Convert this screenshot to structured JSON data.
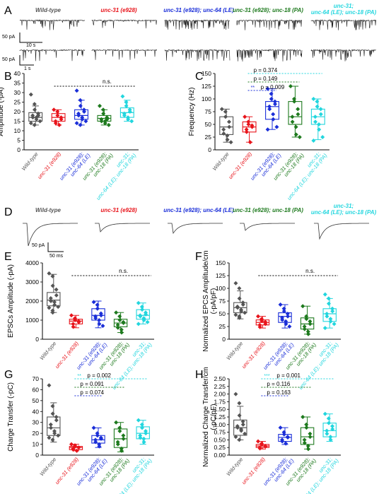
{
  "colors": {
    "wild_type": "#555555",
    "unc31": "#e8141b",
    "unc31_unc64": "#1a2ed8",
    "unc31_unc18": "#1e7a1e",
    "triple": "#22d6de"
  },
  "groups": [
    {
      "key": "wild_type",
      "label_lines": [
        "Wild-type"
      ]
    },
    {
      "key": "unc31",
      "label_lines": [
        "unc-31 (e928)"
      ]
    },
    {
      "key": "unc31_unc64",
      "label_lines": [
        "unc-31 (e928);",
        "unc-64 (LE)"
      ]
    },
    {
      "key": "unc31_unc18",
      "label_lines": [
        "unc-31 (e928);",
        "unc-18 (PA)"
      ]
    },
    {
      "key": "triple",
      "label_lines": [
        "unc-31;",
        "unc-64 (LE); unc-18 (PA)"
      ]
    }
  ],
  "trace_titles_A": [
    "Wild-type",
    "unc-31 (e928)",
    "unc-31 (e928); unc-64 (LE)",
    "unc-31 (e928); unc-18 (PA)",
    "unc-31;"
  ],
  "trace_titles_A_line2": "unc-64 (LE); unc-18 (PA)",
  "trace_titles_D": [
    "Wild-type",
    "unc-31 (e928)",
    "unc-31 (e928); unc-64 (LE)",
    "unc-31 (e928); unc-18 (PA)",
    "unc-31;"
  ],
  "trace_titles_D_line2": "unc-64 (LE); unc-18 (PA)",
  "scale_A1": {
    "y": "50 pA",
    "x": "10 s"
  },
  "scale_A2": {
    "y": "50 pA",
    "x": "1 s"
  },
  "scale_D": {
    "y": "50 pA",
    "x": "50 ms"
  },
  "panel_letters": [
    "A",
    "B",
    "C",
    "D",
    "E",
    "F",
    "G",
    "H"
  ],
  "chart_data": [
    {
      "panel": "B",
      "type": "box",
      "ylabel": "Amplitude (-pA)",
      "ylim": [
        0,
        40
      ],
      "yticks": [
        0,
        5,
        10,
        15,
        20,
        25,
        30,
        35,
        40
      ],
      "annotation": {
        "text": "n.s."
      },
      "boxes": [
        {
          "q1": 15,
          "median": 17,
          "q3": 19.5,
          "min": 13,
          "max": 23
        },
        {
          "q1": 15,
          "median": 17,
          "q3": 19,
          "min": 13,
          "max": 21
        },
        {
          "q1": 16,
          "median": 18,
          "q3": 21,
          "min": 13,
          "max": 26
        },
        {
          "q1": 15,
          "median": 16.5,
          "q3": 18,
          "min": 13,
          "max": 21
        },
        {
          "q1": 17,
          "median": 19.5,
          "q3": 22,
          "min": 15,
          "max": 26
        }
      ],
      "points": [
        [
          29,
          24,
          21,
          19,
          18,
          18,
          17,
          17,
          16,
          15,
          14,
          13
        ],
        [
          21,
          20,
          18,
          17,
          16,
          15,
          14,
          13
        ],
        [
          31,
          26,
          23,
          21,
          20,
          19,
          18,
          17,
          16,
          15,
          14,
          13
        ],
        [
          23,
          21,
          19,
          17,
          16,
          16,
          15,
          15,
          14,
          13
        ],
        [
          28,
          25,
          23,
          21,
          20,
          19,
          18,
          17,
          16,
          15
        ]
      ]
    },
    {
      "panel": "C",
      "type": "box",
      "ylabel": "Frequency (Hz)",
      "ylim": [
        0,
        150
      ],
      "yticks": [
        0,
        25,
        50,
        75,
        100,
        125,
        150
      ],
      "annotations": [
        {
          "text": "p = 0.374",
          "color_key": "triple"
        },
        {
          "text": "p = 0.149",
          "color_key": "unc31_unc18"
        },
        {
          "stars": "**",
          "text": "p = 0.009",
          "color_key": "unc31_unc64"
        }
      ],
      "boxes": [
        {
          "q1": 30,
          "median": 45,
          "q3": 65,
          "min": 15,
          "max": 80
        },
        {
          "q1": 35,
          "median": 45,
          "q3": 55,
          "min": 15,
          "max": 65
        },
        {
          "q1": 60,
          "median": 85,
          "q3": 95,
          "min": 40,
          "max": 120
        },
        {
          "q1": 50,
          "median": 65,
          "q3": 95,
          "min": 25,
          "max": 125
        },
        {
          "q1": 50,
          "median": 65,
          "q3": 80,
          "min": 20,
          "max": 100
        }
      ],
      "points": [
        [
          80,
          75,
          65,
          55,
          45,
          40,
          32,
          28,
          20,
          15
        ],
        [
          65,
          55,
          50,
          48,
          45,
          40,
          35,
          15
        ],
        [
          120,
          110,
          100,
          95,
          90,
          85,
          80,
          70,
          60,
          45,
          40
        ],
        [
          125,
          100,
          95,
          80,
          70,
          65,
          55,
          45,
          30,
          25
        ],
        [
          100,
          95,
          85,
          80,
          70,
          65,
          55,
          50,
          40,
          25,
          18
        ]
      ]
    },
    {
      "panel": "E",
      "type": "box",
      "ylabel": "EPSCs Amplitude (-pA)",
      "ylim": [
        0,
        4000
      ],
      "yticks": [
        0,
        1000,
        2000,
        3000,
        4000
      ],
      "annotation": {
        "text": "n.s."
      },
      "boxes": [
        {
          "q1": 1750,
          "median": 2050,
          "q3": 2450,
          "min": 1400,
          "max": 3400
        },
        {
          "q1": 800,
          "median": 950,
          "q3": 1050,
          "min": 600,
          "max": 1250
        },
        {
          "q1": 1000,
          "median": 1250,
          "q3": 1600,
          "min": 600,
          "max": 2000
        },
        {
          "q1": 650,
          "median": 850,
          "q3": 1050,
          "min": 350,
          "max": 1400
        },
        {
          "q1": 1050,
          "median": 1250,
          "q3": 1550,
          "min": 800,
          "max": 1900
        }
      ],
      "points": [
        [
          3450,
          3300,
          2800,
          2600,
          2300,
          2150,
          2000,
          1950,
          1800,
          1700,
          1650,
          1500,
          1400
        ],
        [
          1250,
          1100,
          1000,
          950,
          900,
          800,
          650
        ],
        [
          1950,
          1800,
          1600,
          1350,
          1250,
          1200,
          1100,
          1000,
          800,
          700
        ],
        [
          1400,
          1200,
          1000,
          900,
          850,
          750,
          600,
          500,
          350
        ],
        [
          1900,
          1700,
          1550,
          1400,
          1300,
          1250,
          1200,
          1100,
          1000,
          900,
          800
        ]
      ]
    },
    {
      "panel": "F",
      "type": "box",
      "ylabel": "Normalized EPCS Amplitude/cm",
      "ylabel2": "(-pA/pF)",
      "ylim": [
        0,
        150
      ],
      "yticks": [
        0,
        25,
        50,
        75,
        100,
        125,
        150
      ],
      "annotation": {
        "text": "n.s."
      },
      "boxes": [
        {
          "q1": 52,
          "median": 62,
          "q3": 72,
          "min": 40,
          "max": 95
        },
        {
          "q1": 28,
          "median": 33,
          "q3": 38,
          "min": 22,
          "max": 45
        },
        {
          "q1": 33,
          "median": 45,
          "q3": 52,
          "min": 22,
          "max": 68
        },
        {
          "q1": 20,
          "median": 30,
          "q3": 42,
          "min": 10,
          "max": 65
        },
        {
          "q1": 35,
          "median": 50,
          "q3": 60,
          "min": 22,
          "max": 80
        }
      ],
      "points": [
        [
          110,
          100,
          80,
          72,
          68,
          64,
          62,
          58,
          55,
          52,
          48,
          45,
          42
        ],
        [
          45,
          40,
          36,
          34,
          30,
          28,
          24
        ],
        [
          68,
          60,
          55,
          50,
          45,
          42,
          38,
          35,
          30,
          25
        ],
        [
          65,
          45,
          40,
          35,
          30,
          25,
          20,
          15,
          10
        ],
        [
          88,
          80,
          70,
          60,
          55,
          50,
          45,
          40,
          35,
          30,
          22
        ]
      ]
    },
    {
      "panel": "G",
      "type": "box",
      "ylabel": "Charge Transfer (-pC)",
      "ylim": [
        0,
        70
      ],
      "yticks": [
        0,
        10,
        20,
        30,
        40,
        50,
        60,
        70
      ],
      "annotations": [
        {
          "stars": "**",
          "text": "p = 0.002",
          "color_key": "triple"
        },
        {
          "text": "p = 0.091",
          "color_key": "unc31_unc18"
        },
        {
          "text": "p = 0.074",
          "color_key": "unc31_unc64"
        }
      ],
      "boxes": [
        {
          "q1": 18,
          "median": 25,
          "q3": 35,
          "min": 12,
          "max": 48
        },
        {
          "q1": 5,
          "median": 7,
          "q3": 8,
          "min": 4,
          "max": 10
        },
        {
          "q1": 11,
          "median": 14,
          "q3": 18,
          "min": 7,
          "max": 25
        },
        {
          "q1": 7,
          "median": 15,
          "q3": 24,
          "min": 3,
          "max": 30
        },
        {
          "q1": 15,
          "median": 20,
          "q3": 26,
          "min": 10,
          "max": 32
        }
      ],
      "points": [
        [
          64,
          45,
          38,
          35,
          32,
          28,
          25,
          22,
          20,
          18,
          16,
          14
        ],
        [
          10,
          9,
          8,
          7,
          7,
          6,
          5,
          4
        ],
        [
          25,
          20,
          18,
          16,
          15,
          14,
          12,
          10,
          8
        ],
        [
          30,
          25,
          22,
          18,
          15,
          12,
          10,
          6,
          4
        ],
        [
          32,
          28,
          25,
          22,
          20,
          18,
          16,
          15,
          12
        ]
      ]
    },
    {
      "panel": "H",
      "type": "box",
      "ylabel": "Normalized Charge Transfer/cm",
      "ylabel2": "(-pC/pF)",
      "ylim": [
        0,
        2.5
      ],
      "yticks": [
        0,
        0.25,
        0.5,
        0.75,
        1.0,
        1.25,
        1.5,
        1.75,
        2.0,
        2.25,
        2.5
      ],
      "annotations": [
        {
          "stars": "***",
          "text": "p = 0.001",
          "color_key": "triple"
        },
        {
          "text": "p = 0.116",
          "color_key": "unc31_unc18"
        },
        {
          "text": "p = 0.163",
          "color_key": "unc31_unc64"
        }
      ],
      "boxes": [
        {
          "q1": 0.65,
          "median": 0.9,
          "q3": 1.15,
          "min": 0.5,
          "max": 1.6
        },
        {
          "q1": 0.25,
          "median": 0.3,
          "q3": 0.35,
          "min": 0.2,
          "max": 0.45
        },
        {
          "q1": 0.45,
          "median": 0.58,
          "q3": 0.68,
          "min": 0.35,
          "max": 0.9
        },
        {
          "q1": 0.35,
          "median": 0.6,
          "q3": 0.9,
          "min": 0.2,
          "max": 1.25
        },
        {
          "q1": 0.6,
          "median": 0.8,
          "q3": 1.05,
          "min": 0.45,
          "max": 1.35
        }
      ],
      "points": [
        [
          2.0,
          1.7,
          1.3,
          1.1,
          1.0,
          0.95,
          0.9,
          0.85,
          0.8,
          0.7,
          0.6,
          0.5
        ],
        [
          0.45,
          0.38,
          0.34,
          0.3,
          0.28,
          0.25,
          0.22
        ],
        [
          0.9,
          0.75,
          0.68,
          0.6,
          0.58,
          0.5,
          0.45,
          0.38
        ],
        [
          1.25,
          1.0,
          0.9,
          0.7,
          0.6,
          0.5,
          0.4,
          0.3,
          0.2
        ],
        [
          1.35,
          1.2,
          1.05,
          0.95,
          0.85,
          0.8,
          0.7,
          0.6,
          0.5
        ]
      ]
    }
  ]
}
